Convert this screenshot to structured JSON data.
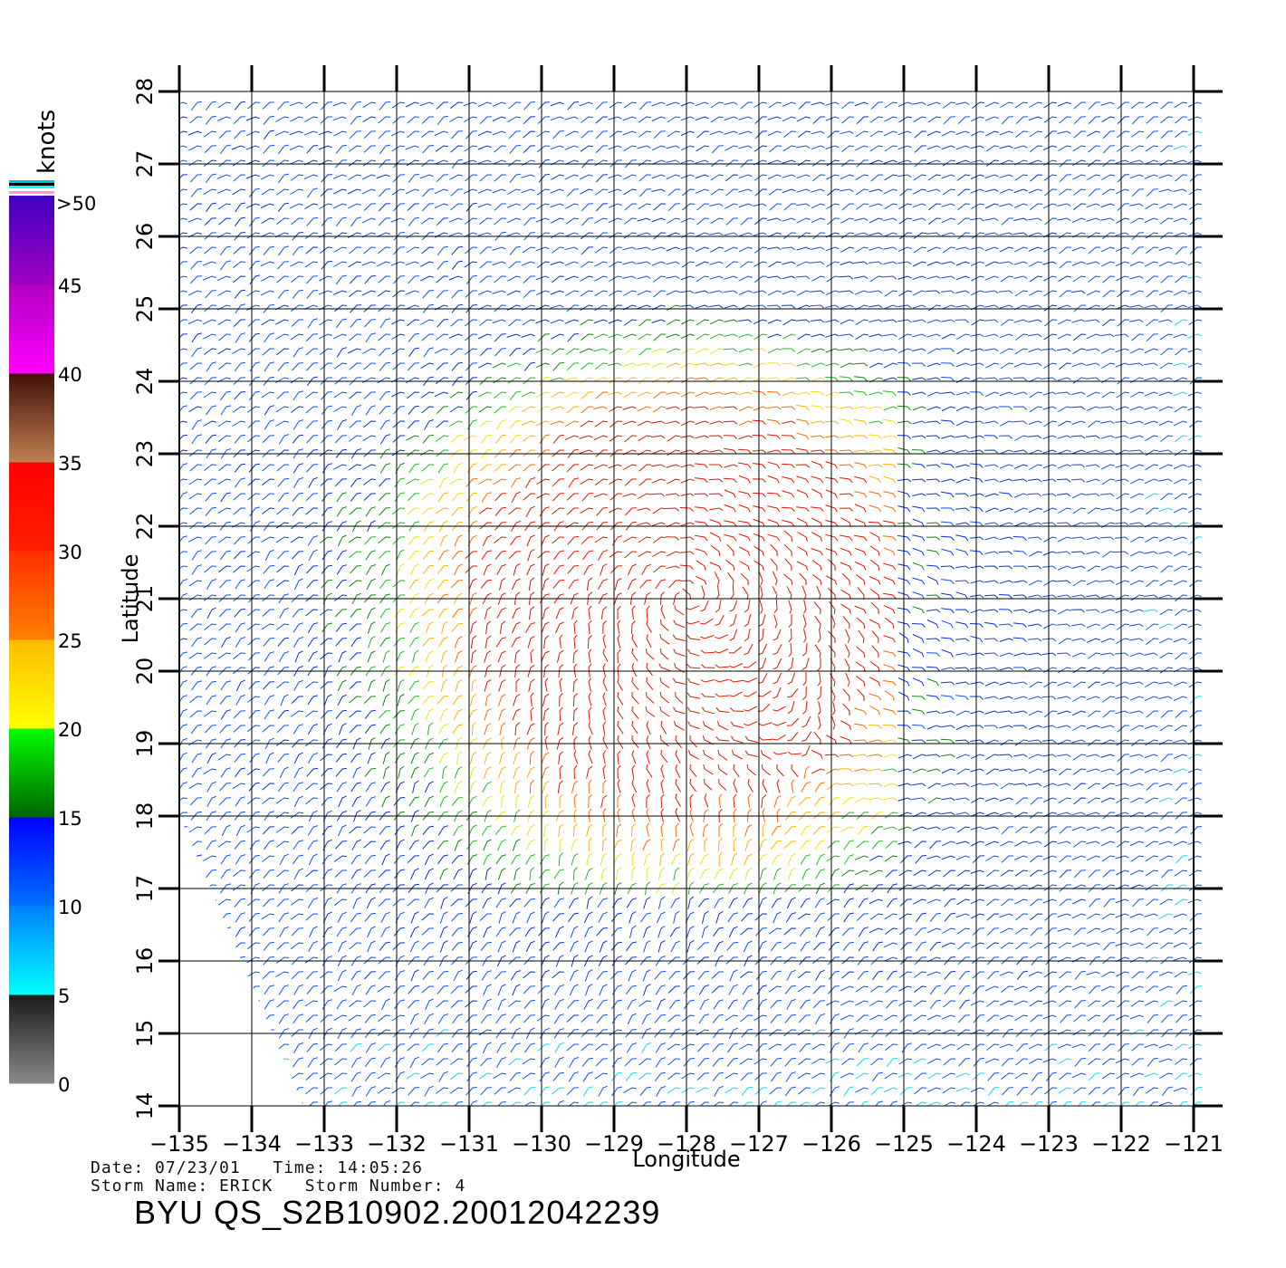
{
  "map": {
    "xlabel": "Longitude",
    "ylabel": "Latitude",
    "lon_range": [
      -135,
      -121
    ],
    "lat_range": [
      14,
      28
    ],
    "lon_ticks": [
      "−135",
      "−134",
      "−133",
      "−132",
      "−131",
      "−130",
      "−129",
      "−128",
      "−127",
      "−126",
      "−125",
      "−124",
      "−123",
      "−122",
      "−121"
    ],
    "lat_ticks": [
      "14",
      "15",
      "16",
      "17",
      "18",
      "19",
      "20",
      "21",
      "22",
      "23",
      "24",
      "25",
      "26",
      "27",
      "28"
    ],
    "grid": true,
    "field": "wind vectors",
    "wind_center": {
      "lon": -128,
      "lat": 21
    }
  },
  "colorbar": {
    "unit_label": "knots",
    "top_label": ">50",
    "labels": [
      "0",
      "5",
      "10",
      "15",
      "20",
      "25",
      "30",
      "35",
      "40",
      "45"
    ],
    "bands": [
      {
        "from": 0,
        "to": 5,
        "colors": [
          "#8a8a8a",
          "#1a1a1a"
        ]
      },
      {
        "from": 5,
        "to": 10,
        "colors": [
          "#00ffff",
          "#0080ff"
        ]
      },
      {
        "from": 10,
        "to": 15,
        "colors": [
          "#0070ff",
          "#0000ff"
        ]
      },
      {
        "from": 15,
        "to": 20,
        "colors": [
          "#006400",
          "#00ff00"
        ]
      },
      {
        "from": 20,
        "to": 25,
        "colors": [
          "#ffff00",
          "#ffbb00"
        ]
      },
      {
        "from": 25,
        "to": 30,
        "colors": [
          "#ff8000",
          "#ff3000"
        ]
      },
      {
        "from": 30,
        "to": 35,
        "colors": [
          "#ff2000",
          "#ff0000"
        ]
      },
      {
        "from": 35,
        "to": 40,
        "colors": [
          "#c08050",
          "#401008"
        ]
      },
      {
        "from": 40,
        "to": 45,
        "colors": [
          "#ff00ff",
          "#b000c0"
        ]
      },
      {
        "from": 45,
        "to": 50,
        "colors": [
          "#a000c0",
          "#4000c0"
        ]
      }
    ]
  },
  "info": {
    "date_line": "Date: 07/23/01   Time: 14:05:26",
    "storm_line": "Storm Name: ERICK   Storm Number: 4",
    "title": "BYU QS_S2B10902.20012042239"
  }
}
